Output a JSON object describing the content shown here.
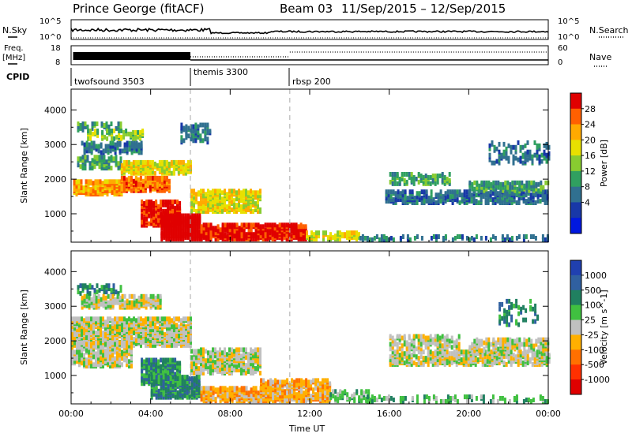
{
  "header": {
    "station": "Prince George (fitACF)",
    "beam": "Beam 03",
    "date_range": "11/Sep/2015 – 12/Sep/2015"
  },
  "strips": {
    "nsky_label": "N.Sky",
    "nsearch_label": "N.Search",
    "freq_label": "Freq.",
    "freq_unit": "[MHz]",
    "nave_label": "Nave",
    "cpid_label": "CPID",
    "noise_ticks_left": [
      "10^5",
      "10^0"
    ],
    "noise_ticks_right": [
      "10^5",
      "10^0"
    ],
    "freq_ticks_left": [
      "18",
      "8"
    ],
    "freq_ticks_right": [
      "60",
      "0"
    ],
    "cpid": [
      {
        "name": "twofsound 3503",
        "start": 0,
        "end": 6
      },
      {
        "name": "themis 3300",
        "start": 6,
        "end": 11
      },
      {
        "name": "rbsp 200",
        "start": 11,
        "end": 24
      }
    ]
  },
  "colorbars": {
    "power": {
      "label": "Power [dB]",
      "ticks": [
        "28",
        "24",
        "20",
        "16",
        "12",
        "8",
        "4"
      ],
      "colors": [
        "#e00000",
        "#ff6000",
        "#ffaa00",
        "#e8e000",
        "#88cc30",
        "#30a060",
        "#307090",
        "#1838a8",
        "#0018e0"
      ]
    },
    "velocity": {
      "label": "Velocity [m s^-1]",
      "ticks": [
        "1000",
        "500",
        "100",
        "25",
        "-25",
        "-100",
        "-500",
        "-1000"
      ],
      "colors": [
        "#2040b0",
        "#3060a0",
        "#208060",
        "#40c040",
        "#c0c0c0",
        "#ffb000",
        "#ff7000",
        "#ff3000",
        "#e00000"
      ]
    }
  },
  "chart_data": [
    {
      "type": "heatmap",
      "title": "Power",
      "xlabel": "",
      "ylabel": "Slant Range [km]",
      "x_ticks": [
        "00:00",
        "04:00",
        "08:00",
        "12:00",
        "16:00",
        "20:00",
        "00:00"
      ],
      "y_ticks": [
        "1000",
        "2000",
        "3000",
        "4000"
      ],
      "xlim_hours": [
        0,
        24
      ],
      "ylim_km": [
        180,
        4600
      ],
      "dashed_markers_hours": [
        6,
        11
      ],
      "bands": [
        {
          "start": 0.3,
          "end": 2.5,
          "r_lo": 3350,
          "r_hi": 3550,
          "level": 3,
          "density": 0.4
        },
        {
          "start": 0.8,
          "end": 3.6,
          "r_lo": 3100,
          "r_hi": 3350,
          "level": 4,
          "density": 0.55
        },
        {
          "start": 0.3,
          "end": 2.5,
          "r_lo": 2250,
          "r_hi": 2600,
          "level": 3,
          "density": 0.6
        },
        {
          "start": 0.5,
          "end": 3.5,
          "r_lo": 2700,
          "r_hi": 3000,
          "level": 2,
          "density": 0.55
        },
        {
          "start": 2.5,
          "end": 6.0,
          "r_lo": 2100,
          "r_hi": 2450,
          "level": 5,
          "density": 0.8
        },
        {
          "start": 0.1,
          "end": 2.5,
          "r_lo": 1500,
          "r_hi": 1900,
          "level": 6,
          "density": 0.75
        },
        {
          "start": 2.5,
          "end": 5.0,
          "r_lo": 1600,
          "r_hi": 2000,
          "level": 7,
          "density": 0.75
        },
        {
          "start": 6.0,
          "end": 9.5,
          "r_lo": 1000,
          "r_hi": 1600,
          "level": 5,
          "density": 0.65
        },
        {
          "start": 5.5,
          "end": 7.0,
          "r_lo": 3000,
          "r_hi": 3500,
          "level": 2,
          "density": 0.4
        },
        {
          "start": 3.5,
          "end": 5.5,
          "r_lo": 600,
          "r_hi": 1300,
          "level": 8,
          "density": 0.75
        },
        {
          "start": 4.5,
          "end": 6.5,
          "r_lo": 200,
          "r_hi": 900,
          "level": 9,
          "density": 0.85
        },
        {
          "start": 6.5,
          "end": 11.8,
          "r_lo": 200,
          "r_hi": 650,
          "level": 8,
          "density": 0.8
        },
        {
          "start": 11.8,
          "end": 14.5,
          "r_lo": 200,
          "r_hi": 400,
          "level": 5,
          "density": 0.55
        },
        {
          "start": 14.5,
          "end": 24.0,
          "r_lo": 180,
          "r_hi": 300,
          "level": 2,
          "density": 0.35
        },
        {
          "start": 15.8,
          "end": 24.0,
          "r_lo": 1250,
          "r_hi": 1600,
          "level": 2,
          "density": 0.6
        },
        {
          "start": 16.0,
          "end": 19.0,
          "r_lo": 1800,
          "r_hi": 2100,
          "level": 3,
          "density": 0.5
        },
        {
          "start": 20.0,
          "end": 24.0,
          "r_lo": 1600,
          "r_hi": 1850,
          "level": 3,
          "density": 0.6
        },
        {
          "start": 21.0,
          "end": 24.0,
          "r_lo": 2400,
          "r_hi": 3000,
          "level": 2,
          "density": 0.25
        }
      ]
    },
    {
      "type": "heatmap",
      "title": "Velocity",
      "xlabel": "Time UT",
      "ylabel": "Slant Range [km]",
      "x_ticks": [
        "00:00",
        "04:00",
        "08:00",
        "12:00",
        "16:00",
        "20:00",
        "00:00"
      ],
      "y_ticks": [
        "1000",
        "2000",
        "3000",
        "4000"
      ],
      "xlim_hours": [
        0,
        24
      ],
      "ylim_km": [
        180,
        4600
      ],
      "dashed_markers_hours": [
        6,
        11
      ],
      "bands": [
        {
          "start": 0.3,
          "end": 2.5,
          "r_lo": 3300,
          "r_hi": 3550,
          "level": 6,
          "density": 0.5
        },
        {
          "start": 0.5,
          "end": 4.5,
          "r_lo": 2900,
          "r_hi": 3250,
          "level": 4,
          "density": 0.6
        },
        {
          "start": 0.0,
          "end": 6.0,
          "r_lo": 1800,
          "r_hi": 2600,
          "level": 4,
          "density": 0.75
        },
        {
          "start": 6.0,
          "end": 9.5,
          "r_lo": 1000,
          "r_hi": 1700,
          "level": 4,
          "density": 0.6
        },
        {
          "start": 0.0,
          "end": 3.0,
          "r_lo": 1200,
          "r_hi": 1900,
          "level": 4,
          "density": 0.55
        },
        {
          "start": 3.5,
          "end": 5.5,
          "r_lo": 700,
          "r_hi": 1400,
          "level": 6,
          "density": 0.75
        },
        {
          "start": 4.0,
          "end": 6.5,
          "r_lo": 300,
          "r_hi": 900,
          "level": 6,
          "density": 0.8
        },
        {
          "start": 6.5,
          "end": 9.5,
          "r_lo": 200,
          "r_hi": 600,
          "level": 3,
          "density": 0.7
        },
        {
          "start": 9.5,
          "end": 13.0,
          "r_lo": 200,
          "r_hi": 800,
          "level": 3,
          "density": 0.7
        },
        {
          "start": 13.0,
          "end": 15.0,
          "r_lo": 200,
          "r_hi": 500,
          "level": 5,
          "density": 0.4
        },
        {
          "start": 16.0,
          "end": 24.0,
          "r_lo": 1250,
          "r_hi": 1650,
          "level": 4,
          "density": 0.6
        },
        {
          "start": 16.0,
          "end": 19.5,
          "r_lo": 1700,
          "r_hi": 2100,
          "level": 4,
          "density": 0.5
        },
        {
          "start": 20.0,
          "end": 24.0,
          "r_lo": 1650,
          "r_hi": 2000,
          "level": 4,
          "density": 0.55
        },
        {
          "start": 14.5,
          "end": 24.0,
          "r_lo": 180,
          "r_hi": 350,
          "level": 5,
          "density": 0.3
        },
        {
          "start": 21.5,
          "end": 23.5,
          "r_lo": 2400,
          "r_hi": 3100,
          "level": 6,
          "density": 0.2
        }
      ]
    }
  ]
}
